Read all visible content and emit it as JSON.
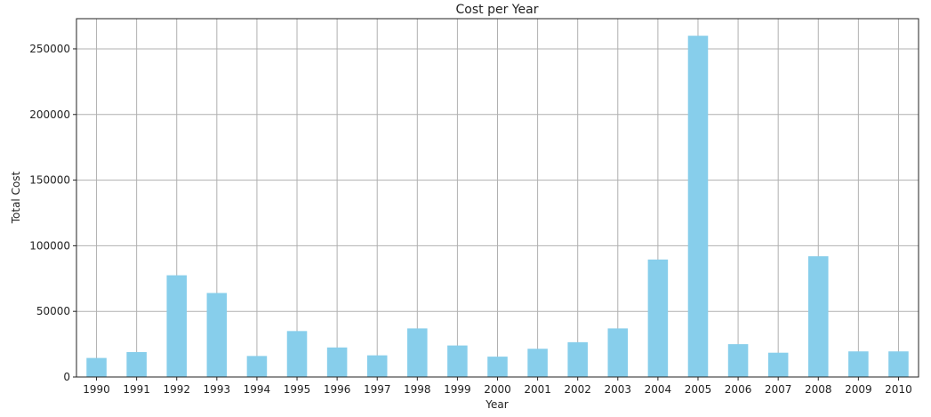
{
  "chart_data": {
    "type": "bar",
    "title": "Cost per Year",
    "xlabel": "Year",
    "ylabel": "Total Cost",
    "categories": [
      "1990",
      "1991",
      "1992",
      "1993",
      "1994",
      "1995",
      "1996",
      "1997",
      "1998",
      "1999",
      "2000",
      "2001",
      "2002",
      "2003",
      "2004",
      "2005",
      "2006",
      "2007",
      "2008",
      "2009",
      "2010"
    ],
    "values": [
      14500,
      19000,
      77500,
      64000,
      16000,
      35000,
      22500,
      16500,
      37000,
      24000,
      15500,
      21500,
      26500,
      37000,
      89500,
      260000,
      25000,
      18500,
      92000,
      19500,
      19500
    ],
    "ylim": [
      0,
      273000
    ],
    "yticks": [
      0,
      50000,
      100000,
      150000,
      200000,
      250000
    ],
    "grid": true,
    "colors": {
      "bar": "#87ceeb",
      "grid": "#b0b0b0",
      "axis": "#222222"
    }
  }
}
